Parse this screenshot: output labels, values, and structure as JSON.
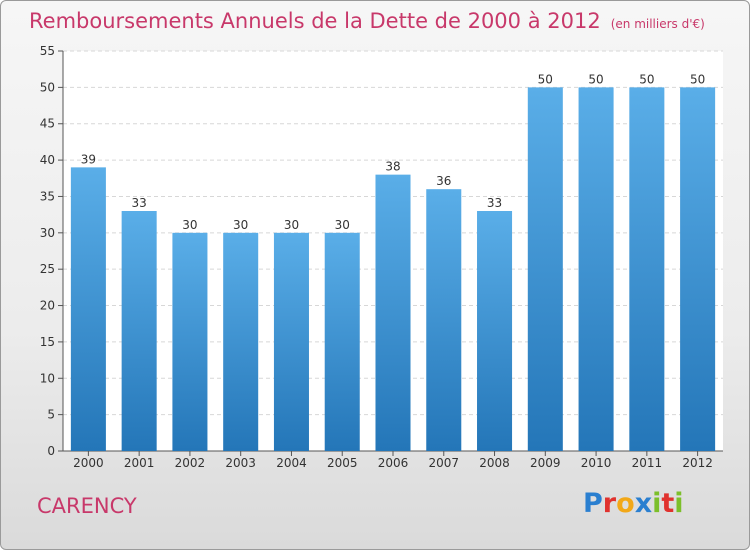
{
  "title": "Remboursements Annuels de la Dette de 2000 à 2012",
  "unit": "(en milliers d'€)",
  "commune": "CARENCY",
  "logo": {
    "text": "Proxiti",
    "letters": [
      {
        "ch": "P",
        "color": "#2a7fd0"
      },
      {
        "ch": "r",
        "color": "#e0322e"
      },
      {
        "ch": "o",
        "color": "#f2a818"
      },
      {
        "ch": "x",
        "color": "#2a7fd0"
      },
      {
        "ch": "i",
        "color": "#7cbf2a"
      },
      {
        "ch": "t",
        "color": "#e0322e"
      },
      {
        "ch": "i",
        "color": "#7cbf2a"
      }
    ]
  },
  "colors": {
    "bar_top": "#5aaee8",
    "bar_bottom": "#2476b8",
    "accent": "#c8386a"
  },
  "chart_data": {
    "type": "bar",
    "categories": [
      "2000",
      "2001",
      "2002",
      "2003",
      "2004",
      "2005",
      "2006",
      "2007",
      "2008",
      "2009",
      "2010",
      "2011",
      "2012"
    ],
    "values": [
      39,
      33,
      30,
      30,
      30,
      30,
      38,
      36,
      33,
      50,
      50,
      50,
      50
    ],
    "ylim": [
      0,
      55
    ],
    "yticks": [
      0,
      5,
      10,
      15,
      20,
      25,
      30,
      35,
      40,
      45,
      50,
      55
    ],
    "grid": true,
    "xlabel": "",
    "ylabel": ""
  }
}
